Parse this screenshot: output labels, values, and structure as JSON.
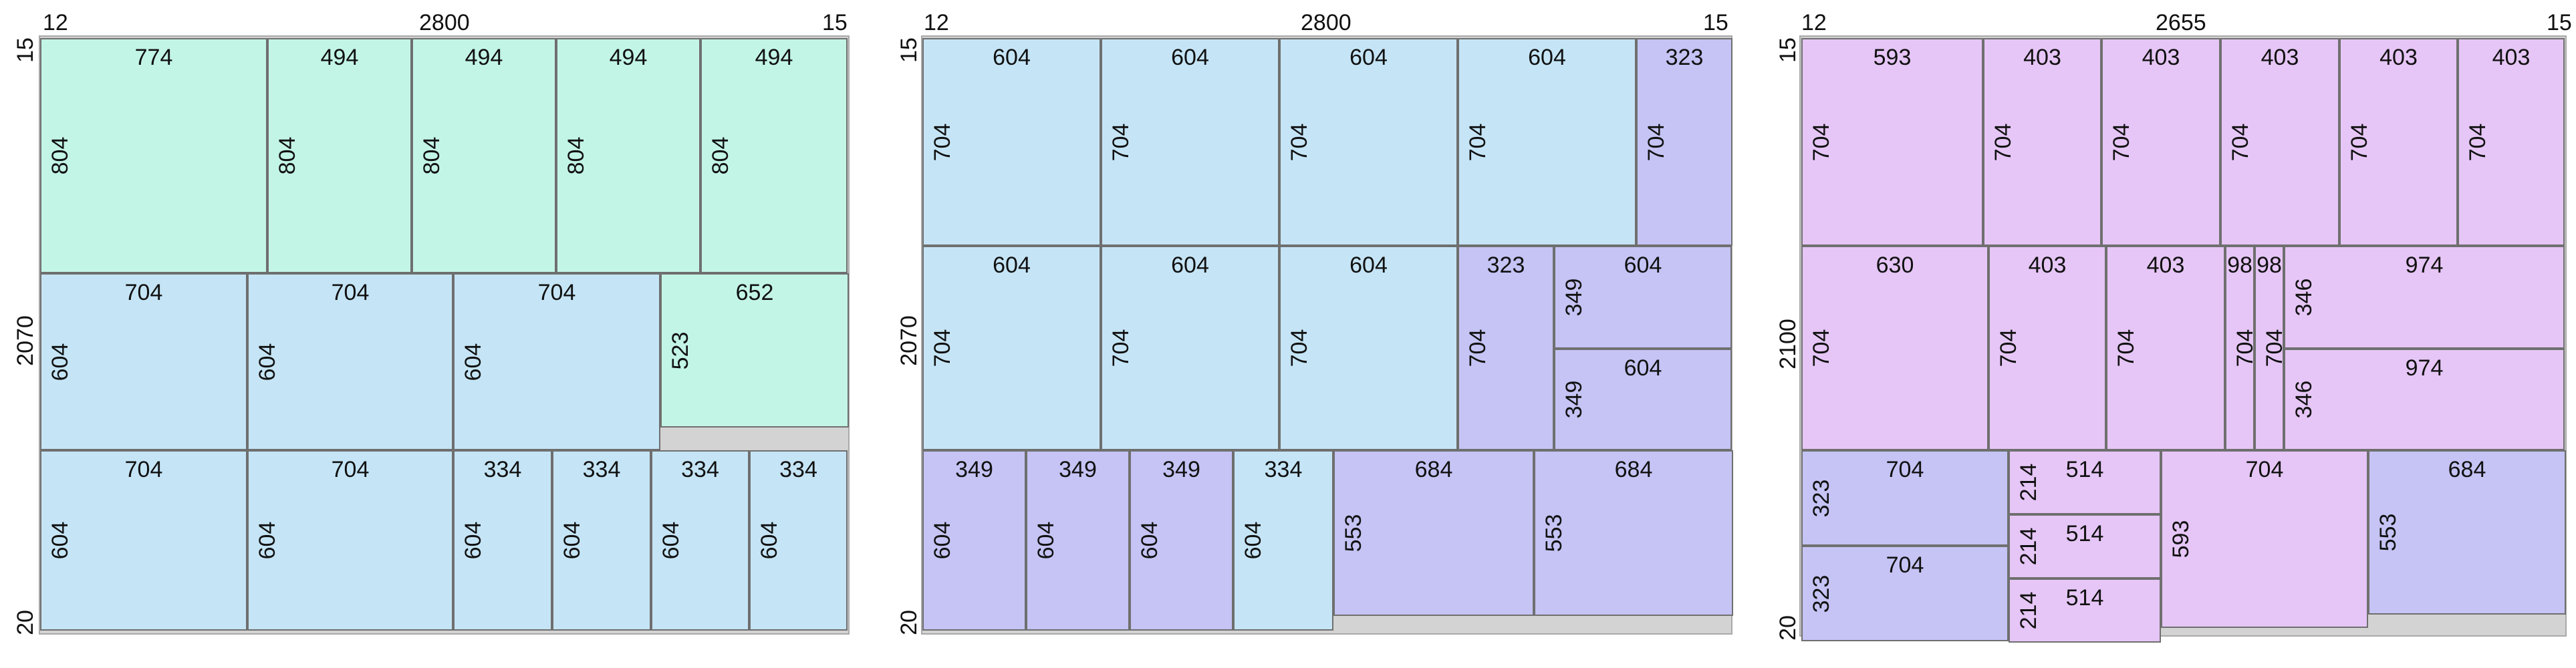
{
  "colors": {
    "green": "#c3f5e6",
    "blue": "#c5e5f6",
    "lavender": "#c5c4f5",
    "pink": "#e6c6f6",
    "sheet": "#d3d3d3"
  },
  "panels": [
    {
      "offset_left": "12",
      "width": "2800",
      "offset_right": "15",
      "offset_top": "15",
      "height": "2070",
      "offset_bottom": "20",
      "pieces": [
        {
          "w": "774",
          "h": "804",
          "color": "green"
        },
        {
          "w": "494",
          "h": "804",
          "color": "green"
        },
        {
          "w": "494",
          "h": "804",
          "color": "green"
        },
        {
          "w": "494",
          "h": "804",
          "color": "green"
        },
        {
          "w": "494",
          "h": "804",
          "color": "green"
        },
        {
          "w": "704",
          "h": "604",
          "color": "blue"
        },
        {
          "w": "704",
          "h": "604",
          "color": "blue"
        },
        {
          "w": "704",
          "h": "604",
          "color": "blue"
        },
        {
          "w": "652",
          "h": "523",
          "color": "green"
        },
        {
          "w": "704",
          "h": "604",
          "color": "blue"
        },
        {
          "w": "704",
          "h": "604",
          "color": "blue"
        },
        {
          "w": "334",
          "h": "604",
          "color": "blue"
        },
        {
          "w": "334",
          "h": "604",
          "color": "blue"
        },
        {
          "w": "334",
          "h": "604",
          "color": "blue"
        },
        {
          "w": "334",
          "h": "604",
          "color": "blue"
        }
      ]
    },
    {
      "offset_left": "12",
      "width": "2800",
      "offset_right": "15",
      "offset_top": "15",
      "height": "2070",
      "offset_bottom": "20",
      "pieces": [
        {
          "w": "604",
          "h": "704",
          "color": "blue"
        },
        {
          "w": "604",
          "h": "704",
          "color": "blue"
        },
        {
          "w": "604",
          "h": "704",
          "color": "blue"
        },
        {
          "w": "604",
          "h": "704",
          "color": "blue"
        },
        {
          "w": "323",
          "h": "704",
          "color": "lavender"
        },
        {
          "w": "604",
          "h": "704",
          "color": "blue"
        },
        {
          "w": "604",
          "h": "704",
          "color": "blue"
        },
        {
          "w": "604",
          "h": "704",
          "color": "blue"
        },
        {
          "w": "323",
          "h": "704",
          "color": "lavender"
        },
        {
          "w": "604",
          "h": "349",
          "color": "lavender"
        },
        {
          "w": "604",
          "h": "349",
          "color": "lavender"
        },
        {
          "w": "349",
          "h": "604",
          "color": "lavender"
        },
        {
          "w": "349",
          "h": "604",
          "color": "lavender"
        },
        {
          "w": "349",
          "h": "604",
          "color": "lavender"
        },
        {
          "w": "334",
          "h": "604",
          "color": "blue"
        },
        {
          "w": "684",
          "h": "553",
          "color": "lavender"
        },
        {
          "w": "684",
          "h": "553",
          "color": "lavender"
        }
      ]
    },
    {
      "offset_left": "12",
      "width": "2655",
      "offset_right": "15",
      "offset_top": "15",
      "height": "2100",
      "offset_bottom": "20",
      "pieces": [
        {
          "w": "593",
          "h": "704",
          "color": "pink"
        },
        {
          "w": "403",
          "h": "704",
          "color": "pink"
        },
        {
          "w": "403",
          "h": "704",
          "color": "pink"
        },
        {
          "w": "403",
          "h": "704",
          "color": "pink"
        },
        {
          "w": "403",
          "h": "704",
          "color": "pink"
        },
        {
          "w": "403",
          "h": "704",
          "color": "pink"
        },
        {
          "w": "630",
          "h": "704",
          "color": "pink"
        },
        {
          "w": "403",
          "h": "704",
          "color": "pink"
        },
        {
          "w": "403",
          "h": "704",
          "color": "pink"
        },
        {
          "w": "98",
          "h": "704",
          "color": "pink"
        },
        {
          "w": "98",
          "h": "704",
          "color": "pink"
        },
        {
          "w": "974",
          "h": "346",
          "color": "pink"
        },
        {
          "w": "974",
          "h": "346",
          "color": "pink"
        },
        {
          "w": "704",
          "h": "323",
          "color": "lavender"
        },
        {
          "w": "704",
          "h": "323",
          "color": "lavender"
        },
        {
          "w": "514",
          "h": "214",
          "color": "pink"
        },
        {
          "w": "514",
          "h": "214",
          "color": "pink"
        },
        {
          "w": "514",
          "h": "214",
          "color": "pink"
        },
        {
          "w": "704",
          "h": "593",
          "color": "pink"
        },
        {
          "w": "684",
          "h": "553",
          "color": "lavender"
        }
      ]
    }
  ]
}
